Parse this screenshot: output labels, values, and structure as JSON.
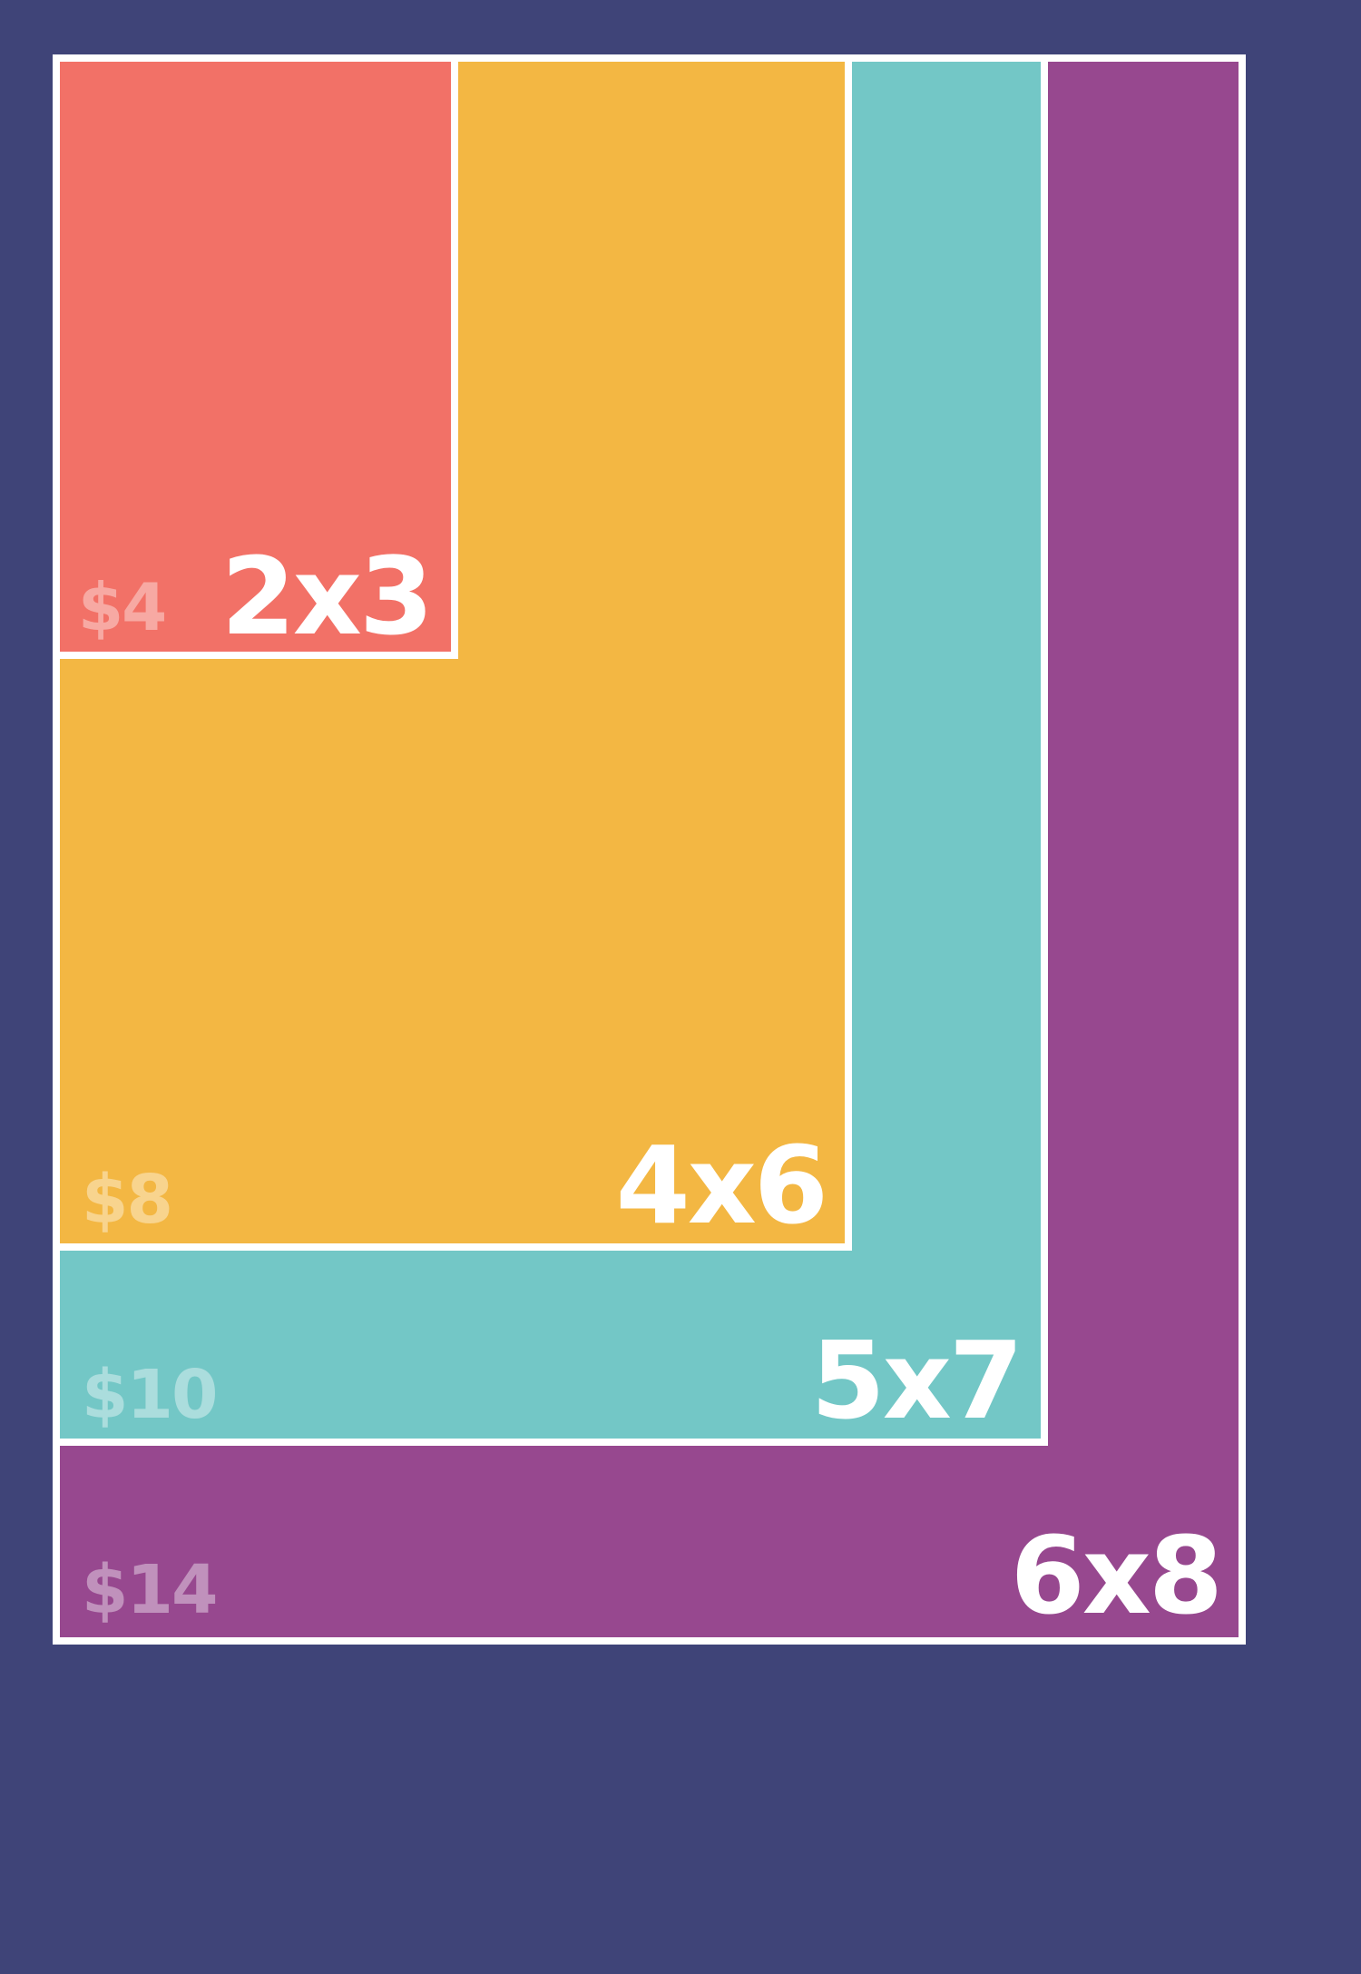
{
  "background_color": "#3f4478",
  "border_color": "#ffffff",
  "prints": [
    {
      "size": "6x8",
      "price": "$14",
      "color": "#97488f"
    },
    {
      "size": "5x7",
      "price": "$10",
      "color": "#73c7c6"
    },
    {
      "size": "4x6",
      "price": "$8",
      "color": "#f3b743"
    },
    {
      "size": "2x3",
      "price": "$4",
      "color": "#f27167"
    }
  ]
}
